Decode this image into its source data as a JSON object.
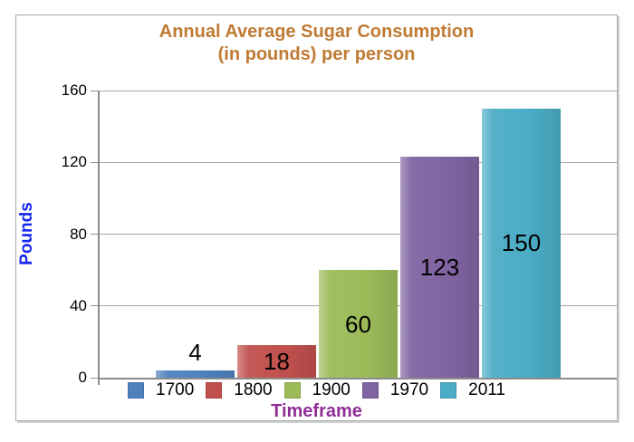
{
  "chart_data": {
    "type": "bar",
    "title": "Annual Average Sugar Consumption",
    "subtitle": "(in pounds) per person",
    "categories": [
      "1700",
      "1800",
      "1900",
      "1970",
      "2011"
    ],
    "values": [
      4,
      18,
      60,
      123,
      150
    ],
    "value_labels": [
      "4",
      "18",
      "60",
      "123",
      "150"
    ],
    "bar_colors": [
      "#4F81BD",
      "#C0504D",
      "#9BBB59",
      "#8064A2",
      "#4BACC6"
    ],
    "xlabel": "Timeframe",
    "ylabel": "Pounds",
    "ylim": [
      0,
      160
    ],
    "yticks": [
      0,
      40,
      80,
      120,
      160
    ],
    "grid": true,
    "legend_position": "bottom"
  },
  "colors": {
    "title_text": "#BF7B34",
    "xlabel_text": "#8F2D97",
    "ylabel_text": "#1526F0",
    "gridline": "#A6A6A6",
    "axis_line": "#8C8C8C",
    "value_label_text": "#000000",
    "frame_border": "#A9A9A9"
  }
}
